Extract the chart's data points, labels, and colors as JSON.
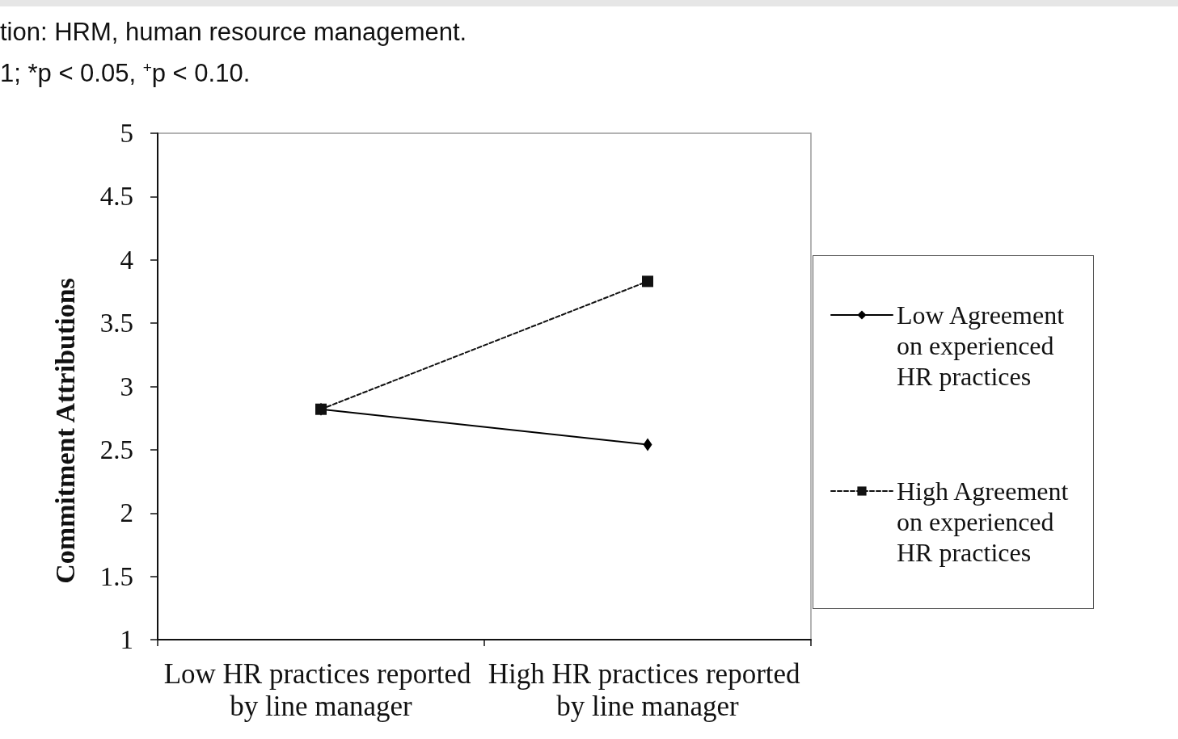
{
  "chart_data": {
    "type": "line",
    "ylabel": "Commitment Attributions",
    "annotations": [
      "tion: HRM, human resource management.",
      "1; *p < 0.05, $^{+}$p < 0.10."
    ],
    "categories": [
      "Low HR practices reported by line manager",
      "High HR practices reported by line manager"
    ],
    "series": [
      {
        "name": "Low Agreement on experienced HR practices",
        "color": "#000000",
        "values": [
          2.82,
          2.54
        ],
        "marker": "diamond",
        "line_style": "solid"
      },
      {
        "name": "High Agreement on experienced HR practices",
        "color": "#111111",
        "values": [
          2.82,
          3.83
        ],
        "marker": "square",
        "line_style": "dashed"
      }
    ],
    "ylim": [
      1,
      5
    ],
    "yticks": [
      1,
      1.5,
      2,
      2.5,
      3,
      3.5,
      4,
      4.5,
      5
    ],
    "grid": false,
    "legend": "right"
  }
}
